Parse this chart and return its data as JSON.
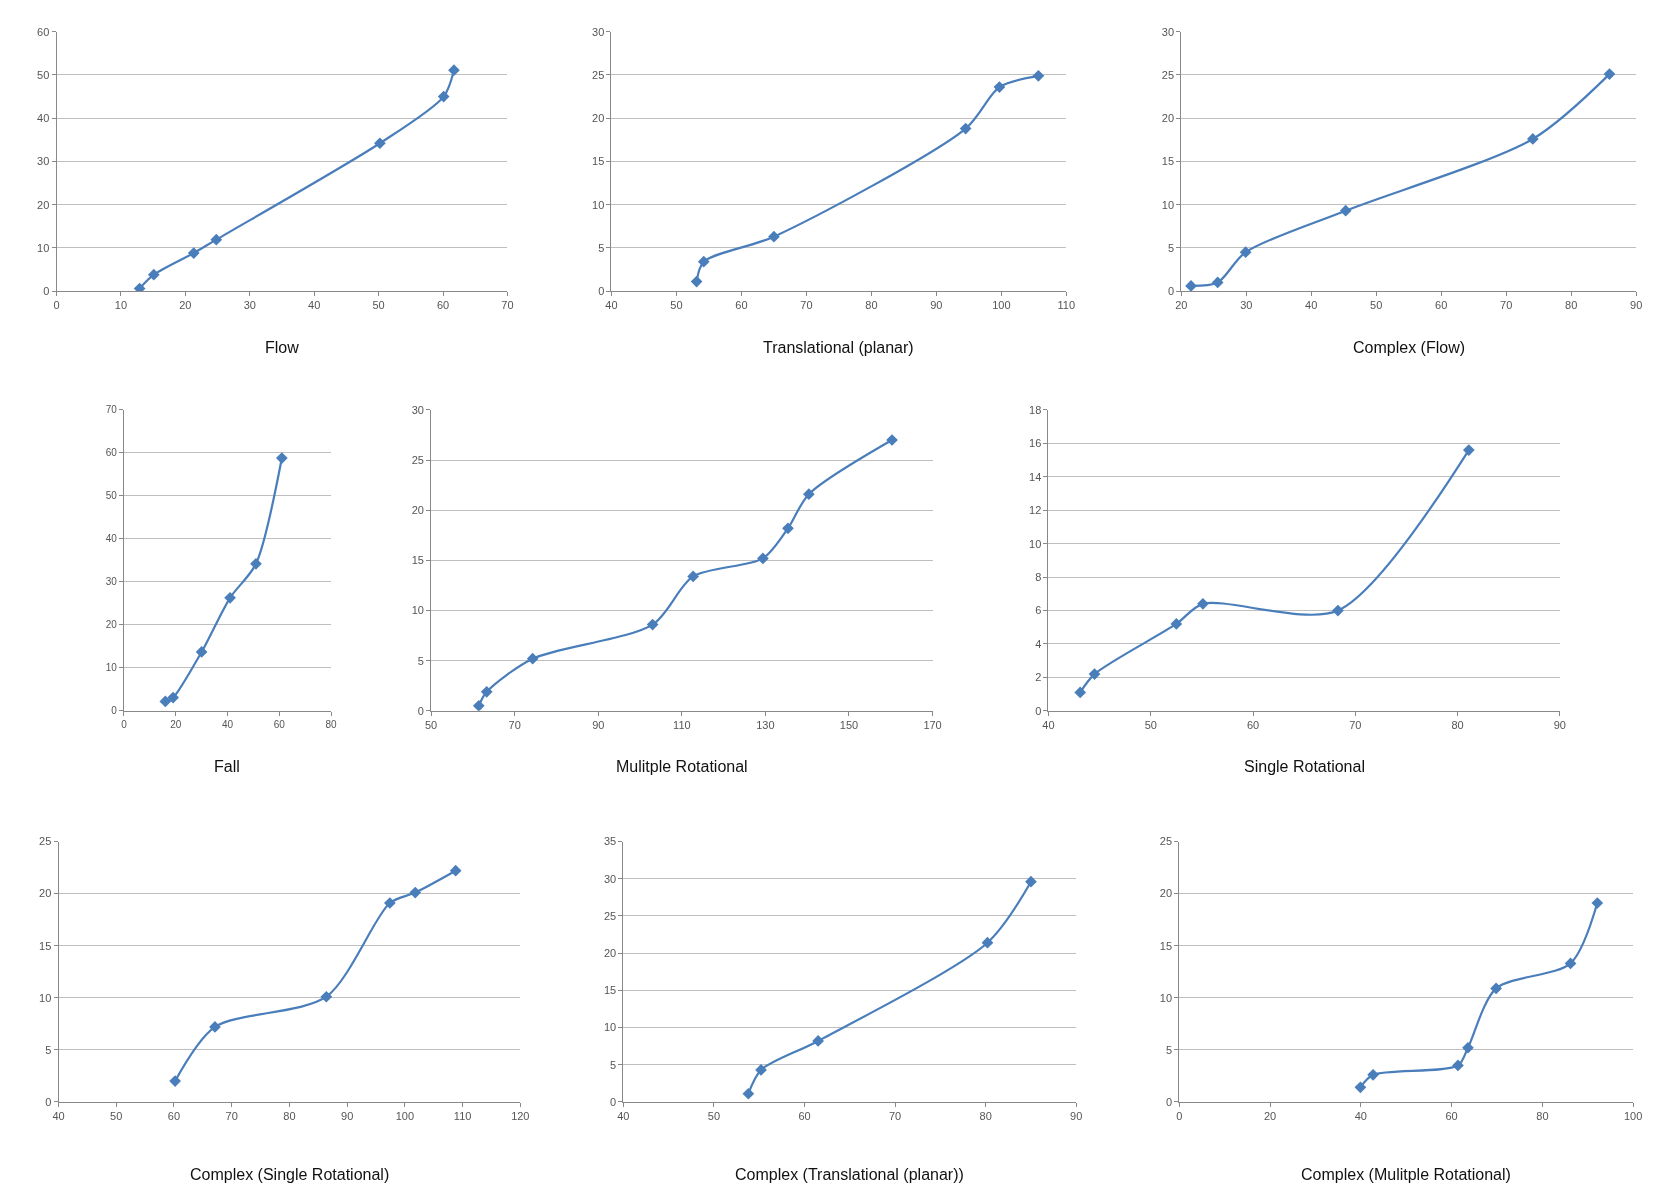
{
  "chart_data": [
    {
      "type": "line",
      "title": "Flow",
      "x": [
        12.9,
        15.1,
        21.3,
        24.8,
        50.2,
        60.1,
        61.7
      ],
      "values": [
        0.6,
        3.8,
        8.8,
        11.9,
        34.2,
        45.0,
        51.1
      ],
      "color": "#4a7ebb",
      "marker": "diamond",
      "grid": "y",
      "xlim": [
        0,
        70
      ],
      "xticks": [
        0,
        10,
        20,
        30,
        40,
        50,
        60,
        70
      ],
      "ylim": [
        0,
        60
      ],
      "yticks": [
        0,
        10,
        20,
        30,
        40,
        50,
        60
      ]
    },
    {
      "type": "line",
      "title": "Translational (planar)",
      "x": [
        53.1,
        54.2,
        65.0,
        94.5,
        99.7,
        105.7
      ],
      "values": [
        1.1,
        3.4,
        6.3,
        18.8,
        23.6,
        24.9
      ],
      "color": "#4a7ebb",
      "marker": "diamond",
      "grid": "y",
      "xlim": [
        40,
        110
      ],
      "xticks": [
        40,
        50,
        60,
        70,
        80,
        90,
        100,
        110
      ],
      "ylim": [
        0,
        30
      ],
      "yticks": [
        0,
        5,
        10,
        15,
        20,
        25,
        30
      ]
    },
    {
      "type": "line",
      "title": "Complex (Flow)",
      "x": [
        21.5,
        25.6,
        29.9,
        45.3,
        74.1,
        85.9
      ],
      "values": [
        0.6,
        1.0,
        4.5,
        9.3,
        17.6,
        25.1
      ],
      "color": "#4a7ebb",
      "marker": "diamond",
      "grid": "y",
      "xlim": [
        20,
        90
      ],
      "xticks": [
        20,
        30,
        40,
        50,
        60,
        70,
        80,
        90
      ],
      "ylim": [
        0,
        30
      ],
      "yticks": [
        0,
        5,
        10,
        15,
        20,
        25,
        30
      ]
    },
    {
      "type": "line",
      "title": "Fall",
      "x": [
        16,
        19,
        30,
        41,
        51,
        61
      ],
      "values": [
        2.2,
        3.1,
        13.7,
        26.3,
        34.2,
        58.8
      ],
      "color": "#4a7ebb",
      "marker": "diamond",
      "grid": "y",
      "xlim": [
        0,
        80
      ],
      "xticks": [
        0,
        20,
        40,
        60,
        80
      ],
      "ylim": [
        0,
        70
      ],
      "yticks": [
        0,
        10,
        20,
        30,
        40,
        50,
        60,
        70
      ]
    },
    {
      "type": "line",
      "title": "Mulitple Rotational",
      "x": [
        61.4,
        63.3,
        74.3,
        103.0,
        112.7,
        129.4,
        135.4,
        140.4,
        160.3
      ],
      "values": [
        0.5,
        1.9,
        5.2,
        8.6,
        13.4,
        15.2,
        18.2,
        21.6,
        27.0
      ],
      "color": "#4a7ebb",
      "marker": "diamond",
      "grid": "y",
      "xlim": [
        50,
        170
      ],
      "xticks": [
        50,
        70,
        90,
        110,
        130,
        150,
        170
      ],
      "ylim": [
        0,
        30
      ],
      "yticks": [
        0,
        5,
        10,
        15,
        20,
        25,
        30
      ]
    },
    {
      "type": "line",
      "title": "Single Rotational",
      "x": [
        43.1,
        44.5,
        52.5,
        55.1,
        68.3,
        81.1
      ],
      "values": [
        1.1,
        2.2,
        5.2,
        6.4,
        6.0,
        15.6
      ],
      "color": "#4a7ebb",
      "marker": "diamond",
      "grid": "y",
      "xlim": [
        40,
        90
      ],
      "xticks": [
        40,
        50,
        60,
        70,
        80,
        90
      ],
      "ylim": [
        0,
        18
      ],
      "yticks": [
        0,
        2,
        4,
        6,
        8,
        10,
        12,
        14,
        16,
        18
      ]
    },
    {
      "type": "line",
      "title": "Complex (Single Rotational)",
      "x": [
        60.2,
        67.1,
        86.4,
        97.4,
        101.8,
        108.8
      ],
      "values": [
        2.0,
        7.2,
        10.1,
        19.1,
        20.1,
        22.2
      ],
      "color": "#4a7ebb",
      "marker": "diamond",
      "grid": "y",
      "xlim": [
        40,
        120
      ],
      "xticks": [
        40,
        50,
        60,
        70,
        80,
        90,
        100,
        110,
        120
      ],
      "ylim": [
        0,
        25
      ],
      "yticks": [
        0,
        5,
        10,
        15,
        20,
        25
      ]
    },
    {
      "type": "line",
      "title": "Complex (Translational (planar))",
      "x": [
        53.8,
        55.2,
        61.5,
        80.2,
        85.0
      ],
      "values": [
        1.1,
        4.3,
        8.2,
        21.4,
        29.6
      ],
      "color": "#4a7ebb",
      "marker": "diamond",
      "grid": "y",
      "xlim": [
        40,
        90
      ],
      "xticks": [
        40,
        50,
        60,
        70,
        80,
        90
      ],
      "ylim": [
        0,
        35
      ],
      "yticks": [
        0,
        5,
        10,
        15,
        20,
        25,
        30,
        35
      ]
    },
    {
      "type": "line",
      "title": "Complex (Mulitple Rotational)",
      "x": [
        39.9,
        42.7,
        61.4,
        63.6,
        69.8,
        86.2,
        92.1
      ],
      "values": [
        1.4,
        2.6,
        3.5,
        5.2,
        10.9,
        13.3,
        19.1
      ],
      "color": "#4a7ebb",
      "marker": "diamond",
      "grid": "y",
      "xlim": [
        0,
        100
      ],
      "xticks": [
        0,
        20,
        40,
        60,
        80,
        100
      ],
      "ylim": [
        0,
        25
      ],
      "yticks": [
        0,
        5,
        10,
        15,
        20,
        25
      ]
    }
  ]
}
